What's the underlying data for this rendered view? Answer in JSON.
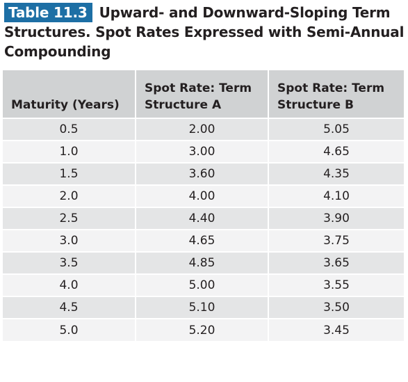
{
  "caption": {
    "label": "Table 11.3",
    "title": "Upward- and Downward-Sloping Term Structures. Spot Rates Expressed with Semi-Annual Compounding",
    "label_color": "#1d6fa5"
  },
  "table": {
    "headers": [
      "Maturity (Years)",
      "Spot Rate: Term Structure A",
      "Spot Rate: Term Structure B"
    ],
    "rows": [
      [
        "0.5",
        "2.00",
        "5.05"
      ],
      [
        "1.0",
        "3.00",
        "4.65"
      ],
      [
        "1.5",
        "3.60",
        "4.35"
      ],
      [
        "2.0",
        "4.00",
        "4.10"
      ],
      [
        "2.5",
        "4.40",
        "3.90"
      ],
      [
        "3.0",
        "4.65",
        "3.75"
      ],
      [
        "3.5",
        "4.85",
        "3.65"
      ],
      [
        "4.0",
        "5.00",
        "3.55"
      ],
      [
        "4.5",
        "5.10",
        "3.50"
      ],
      [
        "5.0",
        "5.20",
        "3.45"
      ]
    ],
    "header_bg": "#d0d2d3",
    "row_bg_odd": "#e4e5e6",
    "row_bg_even": "#f3f3f4"
  }
}
